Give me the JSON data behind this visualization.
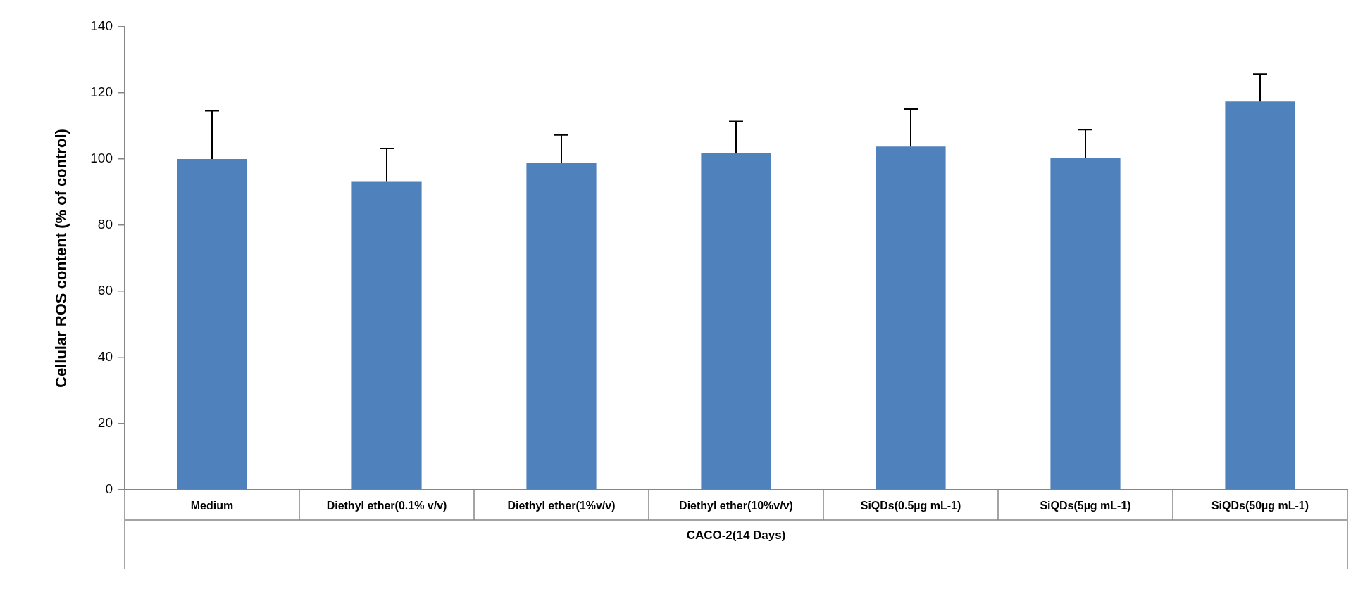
{
  "chart_data": {
    "type": "bar",
    "ylabel": "Cellular ROS content (% of control)",
    "xlabel": "CACO-2(14 Days)",
    "categories": [
      "Medium",
      "Diethyl ether(0.1% v/v)",
      "Diethyl ether(1%v/v)",
      "Diethyl ether(10%v/v)",
      "SiQDs(0.5µg mL-1)",
      "SiQDs(5µg mL-1)",
      "SiQDs(50µg mL-1)"
    ],
    "values": [
      100,
      93.3,
      98.9,
      101.9,
      103.8,
      100.2,
      117.4
    ],
    "errors": [
      [
        100,
        114.6
      ],
      [
        93.3,
        103.2
      ],
      [
        98.9,
        107.3
      ],
      [
        101.9,
        111.4
      ],
      [
        103.8,
        115.1
      ],
      [
        100.2,
        108.9
      ],
      [
        117.4,
        125.7
      ]
    ],
    "color": "#4f81bd",
    "ylim": [
      0,
      140
    ],
    "yticks": [
      0,
      20,
      40,
      60,
      80,
      100,
      120,
      140
    ],
    "grid": false,
    "legend": false
  }
}
